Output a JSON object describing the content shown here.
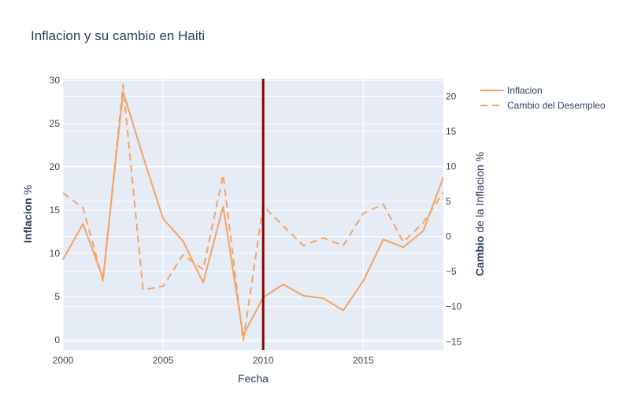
{
  "chart_data": {
    "type": "line",
    "title": "Inflacion y su cambio en Haiti",
    "xlabel": "Fecha",
    "ylabel_left": {
      "bold": "Inflacion",
      "rest": " %"
    },
    "ylabel_right": {
      "bold": "Cambio",
      "rest": " de la Inflacion %"
    },
    "x": [
      2000,
      2001,
      2002,
      2003,
      2004,
      2005,
      2006,
      2007,
      2008,
      2009,
      2010,
      2011,
      2012,
      2013,
      2014,
      2015,
      2016,
      2017,
      2018,
      2019
    ],
    "xlim": [
      2000,
      2019
    ],
    "xticks": [
      2000,
      2005,
      2010,
      2015
    ],
    "ylim_left": [
      -1.2,
      30.2
    ],
    "yticks_left": [
      0,
      5,
      10,
      15,
      20,
      25,
      30
    ],
    "ylim_right": [
      -16.2,
      22.5
    ],
    "yticks_right": [
      -15,
      -10,
      -5,
      0,
      5,
      10,
      15,
      20
    ],
    "series": [
      {
        "name": "Inflacion",
        "axis": "left",
        "dash": "solid",
        "color": "#F4A261",
        "values": [
          9.3,
          13.4,
          7.1,
          28.7,
          21.2,
          14.0,
          11.4,
          6.6,
          15.4,
          0.5,
          4.9,
          6.4,
          5.1,
          4.8,
          3.4,
          6.8,
          11.6,
          10.7,
          12.6,
          18.8
        ]
      },
      {
        "name": "Cambio del Desempleo",
        "axis": "right",
        "dash": "dash",
        "color": "#F4A261",
        "values": [
          6.2,
          4.1,
          -6.3,
          21.6,
          -7.6,
          -7.1,
          -2.6,
          -4.7,
          8.8,
          -14.9,
          4.4,
          1.5,
          -1.3,
          -0.2,
          -1.3,
          3.3,
          4.6,
          -0.8,
          2.0,
          6.3
        ]
      }
    ],
    "vline": {
      "x": 2010,
      "color": "#8B0000"
    },
    "legend_position": "top-right",
    "grid": true
  },
  "colors": {
    "plot_bg": "#E5ECF6",
    "grid": "#ffffff",
    "text": "#2a3f5f",
    "tick_text": "#444444"
  }
}
